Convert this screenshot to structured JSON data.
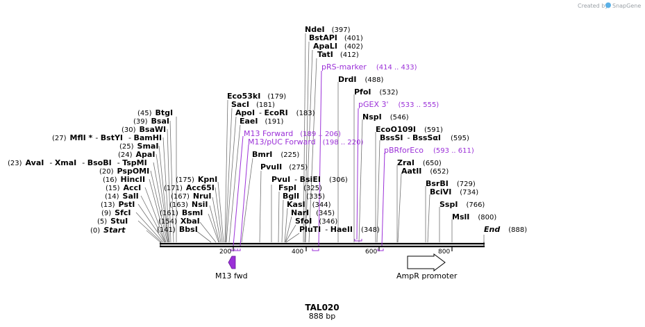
{
  "credit": {
    "label": "Created by",
    "brand": "SnapGene"
  },
  "sequence": {
    "name": "TAL020",
    "length_label": "888 bp"
  },
  "ruler": {
    "ticks": [
      "200",
      "400",
      "600",
      "800"
    ]
  },
  "sites": [
    {
      "name": "Start",
      "pos": "(0)"
    },
    {
      "name": "StuI",
      "pos": "(5)"
    },
    {
      "name": "SfcI",
      "pos": "(9)"
    },
    {
      "name": "PstI",
      "pos": "(13)"
    },
    {
      "name": "SalI",
      "pos": "(14)"
    },
    {
      "name": "AccI",
      "pos": "(15)"
    },
    {
      "name": "HincII",
      "pos": "(16)"
    },
    {
      "name": "PspOMI",
      "pos": "(20)"
    },
    {
      "name": "AvaI",
      "pos": "(23)"
    },
    {
      "name": "XmaI",
      "pos": ""
    },
    {
      "name": "BsoBI",
      "pos": ""
    },
    {
      "name": "TspMI",
      "pos": ""
    },
    {
      "name": "ApaI",
      "pos": "(24)"
    },
    {
      "name": "SmaI",
      "pos": "(25)"
    },
    {
      "name": "MflI *",
      "pos": "(27)"
    },
    {
      "name": "BstYI",
      "pos": ""
    },
    {
      "name": "BamHI",
      "pos": ""
    },
    {
      "name": "BsaWI",
      "pos": "(30)"
    },
    {
      "name": "BsaI",
      "pos": "(39)"
    },
    {
      "name": "BtgI",
      "pos": "(45)"
    },
    {
      "name": "BbsI",
      "pos": "(141)"
    },
    {
      "name": "XbaI",
      "pos": "(154)"
    },
    {
      "name": "BsmI",
      "pos": "(161)"
    },
    {
      "name": "NsiI",
      "pos": "(163)"
    },
    {
      "name": "NruI",
      "pos": "(167)"
    },
    {
      "name": "Acc65I",
      "pos": "(171)"
    },
    {
      "name": "KpnI",
      "pos": "(175)"
    },
    {
      "name": "Eco53kI",
      "pos": "(179)"
    },
    {
      "name": "SacI",
      "pos": "(181)"
    },
    {
      "name": "ApoI",
      "pos": ""
    },
    {
      "name": "EcoRI",
      "pos": "(183)"
    },
    {
      "name": "EaeI",
      "pos": "(191)"
    },
    {
      "name": "BmrI",
      "pos": "(225)"
    },
    {
      "name": "PvuII",
      "pos": "(275)"
    },
    {
      "name": "PvuI",
      "pos": ""
    },
    {
      "name": "BsiEI",
      "pos": "(306)"
    },
    {
      "name": "FspI",
      "pos": "(325)"
    },
    {
      "name": "BglI",
      "pos": "(335)"
    },
    {
      "name": "KasI",
      "pos": "(344)"
    },
    {
      "name": "NarI",
      "pos": "(345)"
    },
    {
      "name": "SfoI",
      "pos": "(346)"
    },
    {
      "name": "PluTI",
      "pos": ""
    },
    {
      "name": "HaeII",
      "pos": "(348)"
    },
    {
      "name": "NdeI",
      "pos": "(397)"
    },
    {
      "name": "BstAPI",
      "pos": "(401)"
    },
    {
      "name": "ApaLI",
      "pos": "(402)"
    },
    {
      "name": "TatI",
      "pos": "(412)"
    },
    {
      "name": "DrdI",
      "pos": "(488)"
    },
    {
      "name": "PfoI",
      "pos": "(532)"
    },
    {
      "name": "NspI",
      "pos": "(546)"
    },
    {
      "name": "EcoO109I",
      "pos": "(591)"
    },
    {
      "name": "BssSI",
      "pos": ""
    },
    {
      "name": "BssSαI",
      "pos": "(595)"
    },
    {
      "name": "ZraI",
      "pos": "(650)"
    },
    {
      "name": "AatII",
      "pos": "(652)"
    },
    {
      "name": "BsrBI",
      "pos": "(729)"
    },
    {
      "name": "BciVI",
      "pos": "(734)"
    },
    {
      "name": "SspI",
      "pos": "(766)"
    },
    {
      "name": "MslI",
      "pos": "(800)"
    },
    {
      "name": "End",
      "pos": "(888)"
    }
  ],
  "primers": [
    {
      "name": "M13 Forward",
      "range": "(189 .. 206)"
    },
    {
      "name": "M13/pUC Forward",
      "range": "(198 .. 220)"
    },
    {
      "name": "pRS-marker",
      "range": "(414 .. 433)"
    },
    {
      "name": "pGEX 3'",
      "range": "(533 .. 555)"
    },
    {
      "name": "pBRforEco",
      "range": "(593 .. 611)"
    }
  ],
  "features": [
    {
      "name": "M13 fwd",
      "color": "#9b30d8",
      "direction": "reverse"
    },
    {
      "name": "AmpR promoter",
      "color": "#ffffff",
      "direction": "forward"
    }
  ],
  "colors": {
    "primer": "#9b30d8",
    "backbone": "#000000",
    "leader": "#707070"
  }
}
